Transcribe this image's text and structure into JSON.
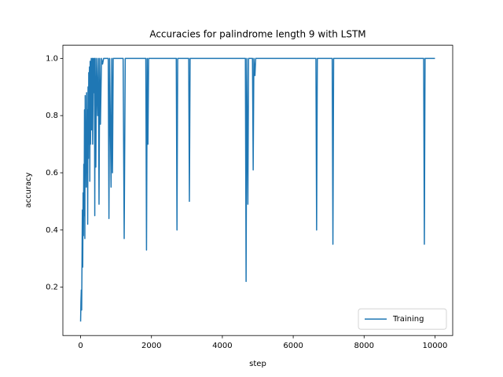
{
  "chart_data": {
    "type": "line",
    "title": "Accuracies for palindrome length 9 with LSTM",
    "x_label": "step",
    "y_label": "accuracy",
    "x": [
      0,
      10,
      20,
      30,
      40,
      50,
      60,
      70,
      80,
      90,
      100,
      110,
      120,
      130,
      140,
      150,
      160,
      170,
      180,
      190,
      200,
      210,
      220,
      230,
      240,
      250,
      260,
      270,
      280,
      300,
      310,
      330,
      340,
      360,
      370,
      390,
      400,
      410,
      430,
      450,
      480,
      500,
      520,
      540,
      560,
      590,
      620,
      650,
      780,
      800,
      820,
      860,
      880,
      900,
      920,
      1000,
      1200,
      1230,
      1260,
      1840,
      1860,
      1880,
      1900,
      1920,
      2700,
      2720,
      2740,
      3050,
      3070,
      3090,
      4650,
      4670,
      4690,
      4720,
      4740,
      4850,
      4870,
      4890,
      4920,
      4940,
      6640,
      6660,
      6680,
      7100,
      7120,
      7140,
      9680,
      9700,
      9720,
      10000
    ],
    "series": [
      {
        "name": "Training",
        "color": "#1f77b4",
        "values": [
          0.08,
          0.15,
          0.19,
          0.12,
          0.29,
          0.47,
          0.27,
          0.53,
          0.38,
          0.63,
          0.45,
          0.82,
          0.37,
          0.87,
          0.6,
          0.75,
          0.55,
          0.88,
          0.6,
          0.82,
          0.42,
          0.9,
          0.65,
          0.95,
          0.7,
          0.97,
          0.57,
          0.99,
          0.7,
          1.0,
          0.75,
          1.0,
          0.7,
          1.0,
          0.88,
          1.0,
          0.45,
          1.0,
          0.62,
          1.0,
          0.8,
          1.0,
          0.49,
          1.0,
          0.77,
          1.0,
          0.98,
          1.0,
          1.0,
          0.44,
          1.0,
          0.55,
          1.0,
          0.6,
          1.0,
          1.0,
          1.0,
          0.37,
          1.0,
          1.0,
          0.33,
          1.0,
          0.7,
          1.0,
          1.0,
          0.4,
          1.0,
          1.0,
          0.5,
          1.0,
          1.0,
          0.22,
          1.0,
          0.49,
          1.0,
          1.0,
          0.61,
          1.0,
          0.94,
          1.0,
          1.0,
          0.4,
          1.0,
          1.0,
          0.35,
          1.0,
          1.0,
          0.35,
          1.0,
          1.0
        ]
      }
    ],
    "xlim": [
      -500,
      10500
    ],
    "ylim": [
      0.031,
      1.046
    ],
    "xticks": [
      0,
      2000,
      4000,
      6000,
      8000,
      10000
    ],
    "yticks": [
      0.2,
      0.4,
      0.6,
      0.8,
      {
        "value": 1,
        "label": "1.0"
      }
    ],
    "legend": "lower right"
  }
}
